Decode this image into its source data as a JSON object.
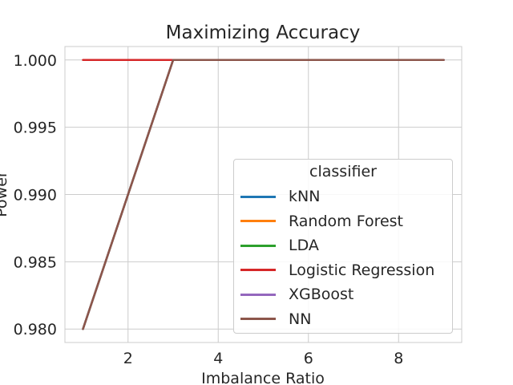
{
  "chart_data": {
    "type": "line",
    "title": "Maximizing Accuracy",
    "xlabel": "Imbalance Ratio",
    "ylabel": "Power",
    "xlim": [
      0.6,
      9.4
    ],
    "ylim": [
      0.979,
      1.001
    ],
    "xticks": [
      2,
      4,
      6,
      8
    ],
    "yticks": [
      0.98,
      0.985,
      0.99,
      0.995,
      1.0
    ],
    "ytick_labels": [
      "0.980",
      "0.985",
      "0.990",
      "0.995",
      "1.000"
    ],
    "grid": true,
    "legend": {
      "title": "classifier",
      "placement": "lower-right"
    },
    "x": [
      1,
      3,
      5,
      7,
      9
    ],
    "series": [
      {
        "name": "kNN",
        "color": "#1f77b4",
        "values": [
          0.98,
          1.0,
          1.0,
          1.0,
          1.0
        ]
      },
      {
        "name": "Random Forest",
        "color": "#ff7f0e",
        "values": [
          0.98,
          1.0,
          1.0,
          1.0,
          1.0
        ]
      },
      {
        "name": "LDA",
        "color": "#2ca02c",
        "values": [
          0.98,
          1.0,
          1.0,
          1.0,
          1.0
        ]
      },
      {
        "name": "Logistic Regression",
        "color": "#d62728",
        "values": [
          1.0,
          1.0,
          1.0,
          1.0,
          1.0
        ]
      },
      {
        "name": "XGBoost",
        "color": "#9467bd",
        "values": [
          0.98,
          1.0,
          1.0,
          1.0,
          1.0
        ]
      },
      {
        "name": "NN",
        "color": "#8c564b",
        "values": [
          0.98,
          1.0,
          1.0,
          1.0,
          1.0
        ]
      }
    ]
  }
}
